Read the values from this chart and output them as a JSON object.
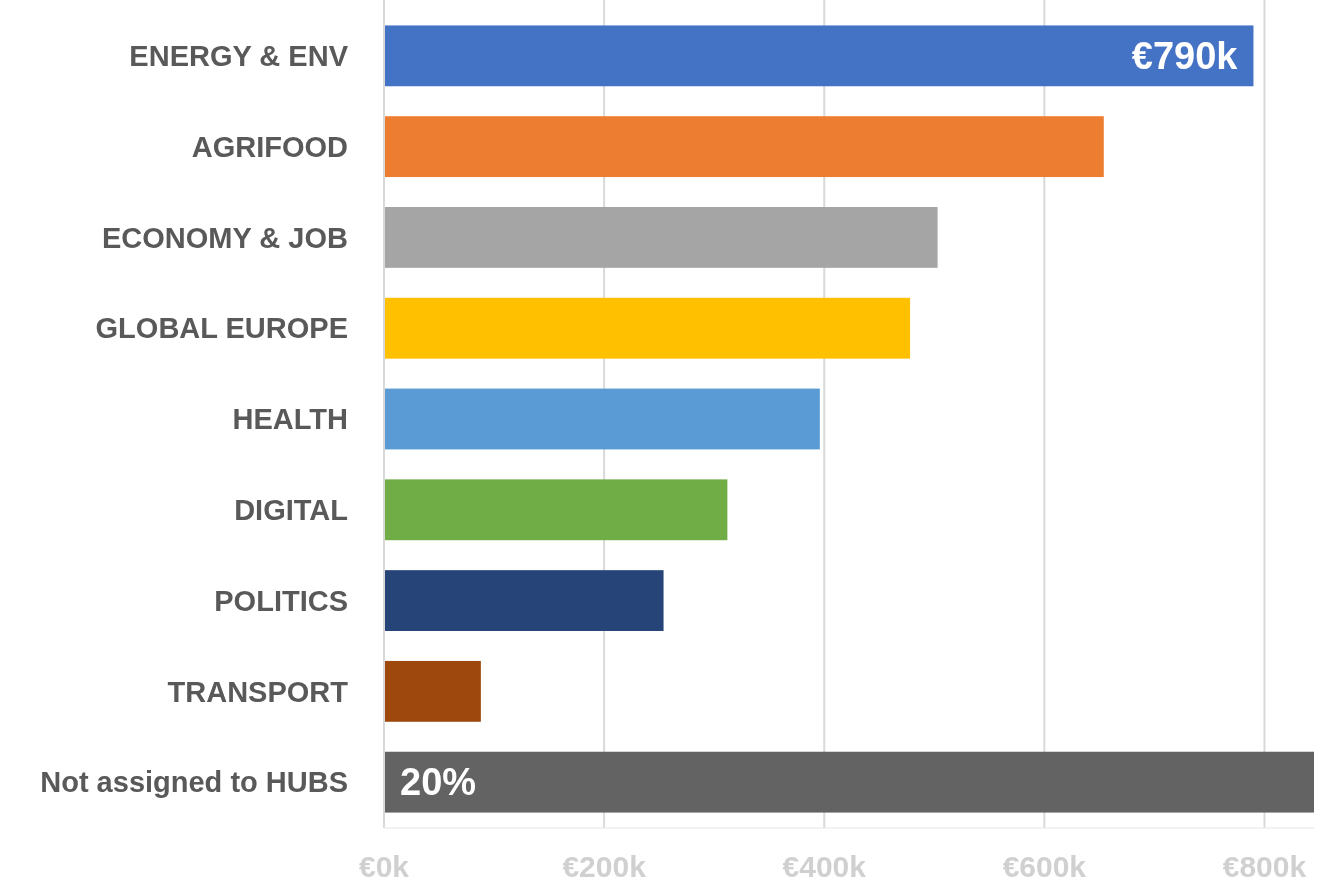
{
  "chart_data": {
    "type": "bar",
    "orientation": "horizontal",
    "categories": [
      "ENERGY & ENV",
      "AGRIFOOD",
      "ECONOMY & JOB",
      "GLOBAL EUROPE",
      "HEALTH",
      "DIGITAL",
      "POLITICS",
      "TRANSPORT",
      "Not assigned to HUBS"
    ],
    "values": [
      790,
      654,
      503,
      478,
      396,
      312,
      254,
      88,
      845
    ],
    "colors": [
      "#4472c4",
      "#ed7d31",
      "#a5a5a5",
      "#ffc000",
      "#5b9bd5",
      "#70ad47",
      "#264478",
      "#9e480e",
      "#636363"
    ],
    "value_labels": [
      "€790k",
      null,
      null,
      null,
      null,
      null,
      null,
      null,
      null
    ],
    "annotations": [
      {
        "text": "20%",
        "x": 0,
        "y": "Not assigned to HUBS"
      }
    ],
    "xlim": [
      0,
      845
    ],
    "xticks": [
      {
        "value": 0,
        "label": "€0k"
      },
      {
        "value": 200,
        "label": "€200k"
      },
      {
        "value": 400,
        "label": "€400k"
      },
      {
        "value": 600,
        "label": "€600k"
      },
      {
        "value": 800,
        "label": "€800k"
      }
    ],
    "grid": "x"
  }
}
